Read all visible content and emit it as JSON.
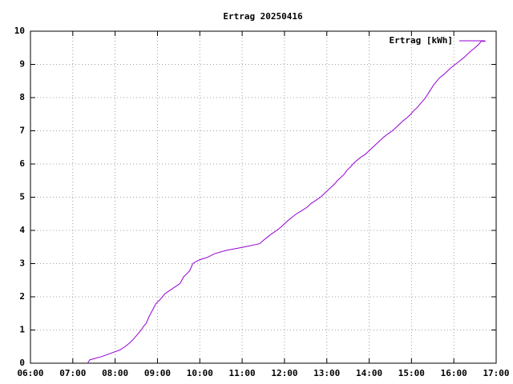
{
  "chart_data": {
    "type": "line",
    "title": "Ertrag 20250416",
    "x": [
      "07:21",
      "07:24",
      "07:41",
      "07:54",
      "08:07",
      "08:14",
      "08:20",
      "08:25",
      "08:29",
      "08:33",
      "08:37",
      "08:40",
      "08:44",
      "08:48",
      "08:53",
      "08:58",
      "09:03",
      "09:07",
      "09:11",
      "09:18",
      "09:25",
      "09:32",
      "09:37",
      "09:42",
      "09:46",
      "09:50",
      "09:58",
      "10:12",
      "10:21",
      "10:38",
      "11:03",
      "11:25",
      "11:30",
      "11:36",
      "11:42",
      "11:49",
      "11:55",
      "12:00",
      "12:05",
      "12:11",
      "12:17",
      "12:25",
      "12:32",
      "12:37",
      "12:44",
      "12:51",
      "12:56",
      "13:01",
      "13:06",
      "13:11",
      "13:15",
      "13:20",
      "13:25",
      "13:28",
      "13:33",
      "13:37",
      "13:42",
      "13:48",
      "13:55",
      "14:00",
      "14:05",
      "14:10",
      "14:15",
      "14:20",
      "14:26",
      "14:33",
      "14:38",
      "14:43",
      "14:48",
      "14:54",
      "14:59",
      "15:03",
      "15:08",
      "15:12",
      "15:16",
      "15:20",
      "15:26",
      "15:32",
      "15:40",
      "15:46",
      "15:51",
      "15:56",
      "16:02",
      "16:08",
      "16:14",
      "16:19",
      "16:24",
      "16:30",
      "16:35",
      "16:39",
      "16:45"
    ],
    "series": [
      {
        "name": "Ertrag [kWh]",
        "color": "#9400d3",
        "values": [
          0,
          0.1,
          0.2,
          0.3,
          0.4,
          0.5,
          0.6,
          0.7,
          0.8,
          0.9,
          1.0,
          1.1,
          1.2,
          1.4,
          1.6,
          1.8,
          1.9,
          2.0,
          2.1,
          2.2,
          2.3,
          2.4,
          2.6,
          2.7,
          2.8,
          3.0,
          3.1,
          3.2,
          3.3,
          3.4,
          3.5,
          3.6,
          3.7,
          3.8,
          3.9,
          4.0,
          4.1,
          4.2,
          4.3,
          4.4,
          4.5,
          4.6,
          4.7,
          4.8,
          4.9,
          5.0,
          5.1,
          5.2,
          5.3,
          5.4,
          5.5,
          5.6,
          5.7,
          5.8,
          5.9,
          6.0,
          6.1,
          6.2,
          6.3,
          6.4,
          6.5,
          6.6,
          6.7,
          6.8,
          6.9,
          7.0,
          7.1,
          7.2,
          7.3,
          7.4,
          7.5,
          7.6,
          7.7,
          7.8,
          7.9,
          8.0,
          8.2,
          8.4,
          8.6,
          8.7,
          8.8,
          8.9,
          9.0,
          9.1,
          9.2,
          9.3,
          9.4,
          9.5,
          9.6,
          9.7,
          9.7
        ]
      }
    ],
    "xlim": [
      "06:00",
      "17:00"
    ],
    "xticks": [
      "06:00",
      "07:00",
      "08:00",
      "09:00",
      "10:00",
      "11:00",
      "12:00",
      "13:00",
      "14:00",
      "15:00",
      "16:00",
      "17:00"
    ],
    "ylim": [
      0,
      10
    ],
    "yticks": [
      0,
      1,
      2,
      3,
      4,
      5,
      6,
      7,
      8,
      9,
      10
    ],
    "grid": true,
    "legend": "top right"
  }
}
